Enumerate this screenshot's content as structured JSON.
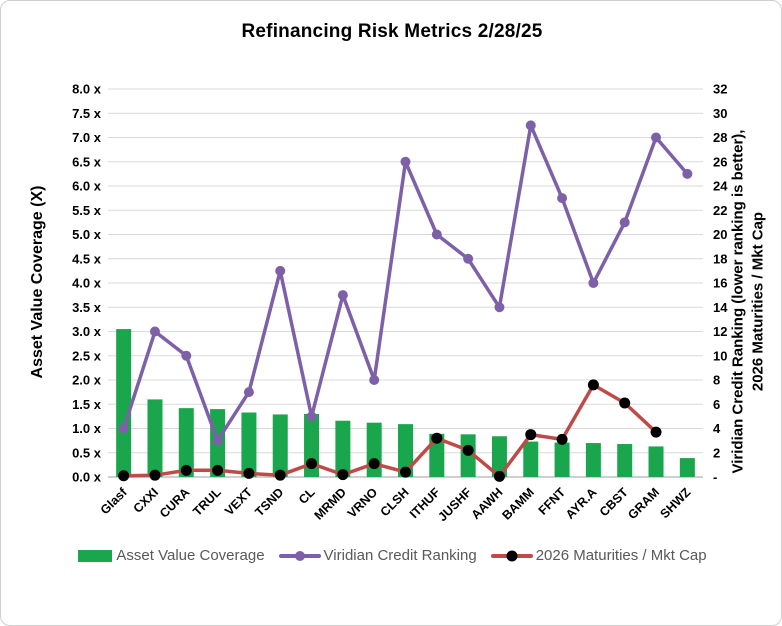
{
  "chart_data": {
    "type": "combo",
    "title": "Refinancing Risk Metrics 2/28/25",
    "categories": [
      "Glasf",
      "CXXI",
      "CURA",
      "TRUL",
      "VEXT",
      "TSND",
      "CL",
      "MRMD",
      "VRNO",
      "CLSH",
      "ITHUF",
      "JUSHF",
      "AAWH",
      "BAMM",
      "FFNT",
      "AYR.A",
      "CBST",
      "GRAM",
      "SHWZ"
    ],
    "series": [
      {
        "name": "Asset Value Coverage",
        "type": "bar",
        "axis": "left",
        "color": "#1aa64d",
        "values": [
          3.05,
          1.6,
          1.42,
          1.4,
          1.33,
          1.29,
          1.3,
          1.16,
          1.12,
          1.09,
          0.89,
          0.88,
          0.84,
          0.73,
          0.71,
          0.7,
          0.68,
          0.63,
          0.39
        ]
      },
      {
        "name": "Viridian Credit Ranking",
        "type": "line",
        "axis": "right",
        "color": "#7d60a7",
        "marker_color": "#7d60a7",
        "values": [
          4,
          12,
          10,
          3,
          7,
          17,
          5,
          15,
          8,
          26,
          20,
          18,
          14,
          29,
          23,
          16,
          21,
          28,
          25
        ]
      },
      {
        "name": "2026 Maturities / Mkt Cap",
        "type": "line",
        "axis": "right",
        "color": "#be4b48",
        "marker_color": "#000000",
        "values": [
          0.1,
          0.15,
          0.55,
          0.55,
          0.3,
          0.15,
          1.1,
          0.2,
          1.1,
          0.4,
          3.2,
          2.2,
          0.05,
          3.5,
          3.1,
          7.6,
          6.1,
          3.7,
          null
        ]
      }
    ],
    "left_axis": {
      "title": "Asset Value Coverage (X)",
      "min": 0,
      "max": 8,
      "step": 0.5,
      "ticks": [
        "8.0 x",
        "7.5 x",
        "7.0 x",
        "6.5 x",
        "6.0 x",
        "5.5 x",
        "5.0 x",
        "4.5 x",
        "4.0 x",
        "3.5 x",
        "3.0 x",
        "2.5 x",
        "2.0 x",
        "1.5 x",
        "1.0 x",
        "0.5 x",
        "0.0 x"
      ]
    },
    "right_axis": {
      "title_line1": "Viridian Credit Ranking (lower ranking is better),",
      "title_line2": "2026 Maturities / Mkt Cap",
      "min": 0,
      "max": 32,
      "step": 2,
      "ticks": [
        "32",
        "30",
        "28",
        "26",
        "24",
        "22",
        "20",
        "18",
        "16",
        "14",
        "12",
        "10",
        "8",
        "6",
        "4",
        "2",
        "-"
      ]
    },
    "layout": {
      "grid": true,
      "gridline_color": "#d9d9d9",
      "axis_line_color": "#bfbfbf",
      "legend_position": "bottom",
      "legend_text_color": "#595959",
      "category_label_rotation": -45
    }
  }
}
